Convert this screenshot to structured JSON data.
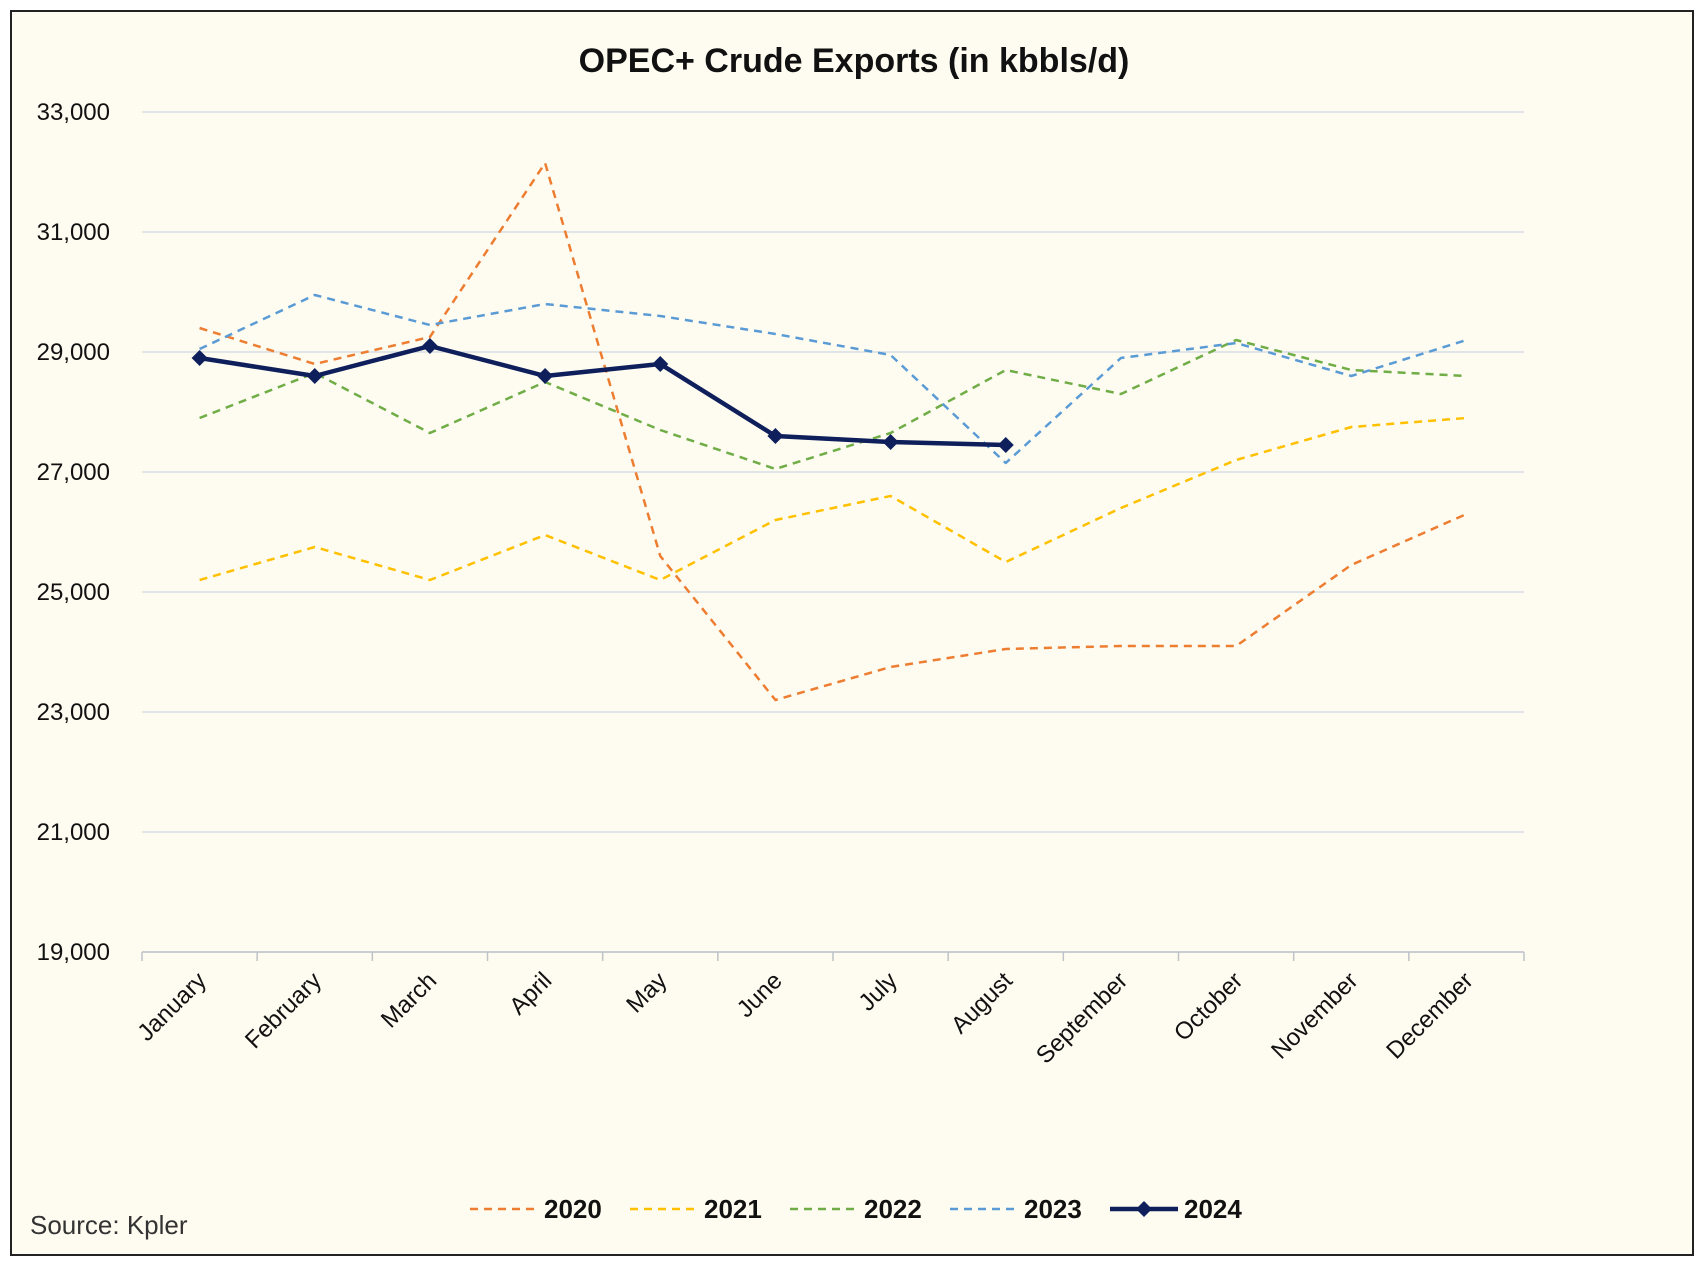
{
  "chart_data": {
    "type": "line",
    "title": "OPEC+ Crude Exports (in kbbls/d)",
    "xlabel": "",
    "ylabel": "",
    "ylim": [
      19000,
      33000
    ],
    "yticks": [
      19000,
      21000,
      23000,
      25000,
      27000,
      29000,
      31000,
      33000
    ],
    "ytick_labels": [
      "19,000",
      "21,000",
      "23,000",
      "25,000",
      "27,000",
      "29,000",
      "31,000",
      "33,000"
    ],
    "grid": true,
    "legend_position": "bottom",
    "categories": [
      "January",
      "February",
      "March",
      "April",
      "May",
      "June",
      "July",
      "August",
      "September",
      "October",
      "November",
      "December"
    ],
    "series": [
      {
        "name": "2020",
        "color": "#ed7d31",
        "style": "dashed",
        "marker": "none",
        "values": [
          29400,
          28800,
          29250,
          32150,
          25600,
          23200,
          23750,
          24050,
          24100,
          24100,
          25450,
          26300
        ]
      },
      {
        "name": "2021",
        "color": "#ffc000",
        "style": "dashed",
        "marker": "none",
        "values": [
          25200,
          25750,
          25200,
          25950,
          25200,
          26200,
          26600,
          25500,
          26400,
          27200,
          27750,
          27900
        ]
      },
      {
        "name": "2022",
        "color": "#70ad47",
        "style": "dashed",
        "marker": "none",
        "values": [
          27900,
          28650,
          27650,
          28500,
          27700,
          27050,
          27650,
          28700,
          28300,
          29200,
          28700,
          28600
        ]
      },
      {
        "name": "2023",
        "color": "#5b9bd5",
        "style": "dashed",
        "marker": "none",
        "values": [
          29050,
          29950,
          29450,
          29800,
          29600,
          29300,
          28950,
          27150,
          28900,
          29150,
          28600,
          29200
        ]
      },
      {
        "name": "2024",
        "color": "#0e1f5b",
        "style": "solid",
        "marker": "diamond",
        "values": [
          28900,
          28600,
          29100,
          28600,
          28800,
          27600,
          27500,
          27450,
          null,
          null,
          null,
          null
        ]
      }
    ]
  },
  "source": "Source: Kpler"
}
